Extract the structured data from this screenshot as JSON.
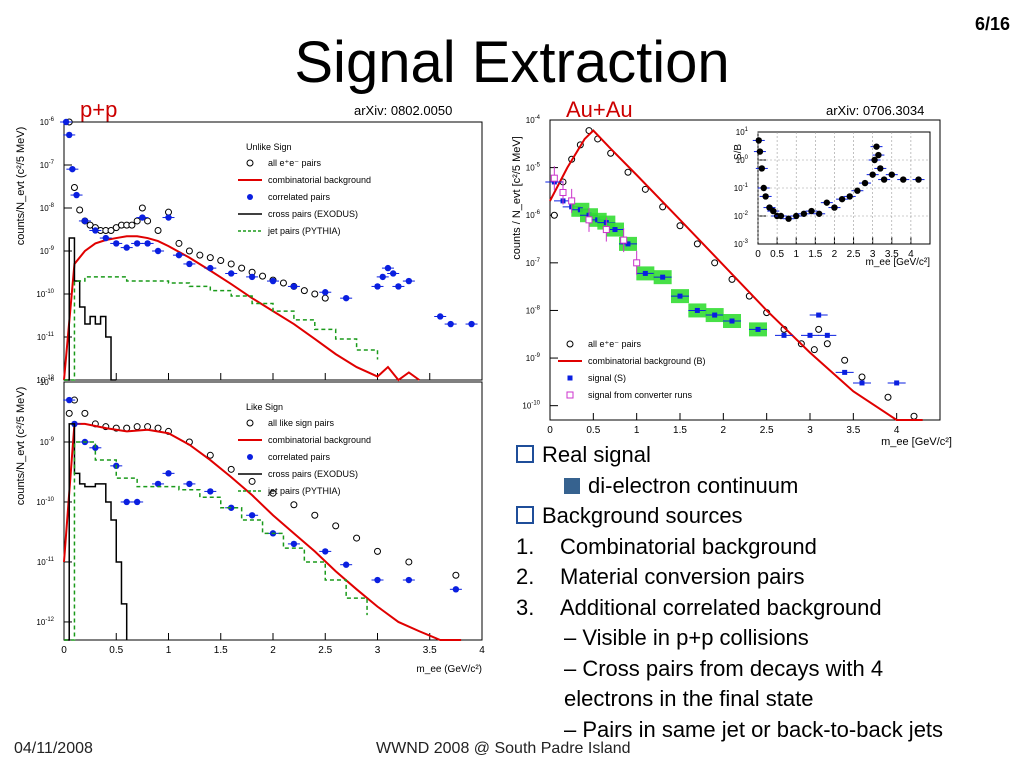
{
  "slide": {
    "title": "Signal Extraction",
    "page": "6/16",
    "footer_date": "04/11/2008",
    "footer_event": "WWND 2008 @ South Padre Island"
  },
  "pp": {
    "label": "p+p",
    "arxiv": "arXiv: 0802.0050",
    "xlabel": "m_ee (GeV/c²)",
    "top_ylabel": "counts/N_evt (c²/5 MeV)",
    "bottom_ylabel": "counts/N_evt (c²/5 MeV)",
    "legend_top_title": "Unlike Sign",
    "legend_top": [
      "all e⁺e⁻ pairs",
      "combinatorial background",
      "correlated pairs",
      "cross pairs (EXODUS)",
      "jet pairs (PYTHIA)"
    ],
    "legend_bottom_title": "Like Sign",
    "legend_bottom": [
      "all like sign pairs",
      "combinatorial background",
      "correlated pairs",
      "cross pairs (EXODUS)",
      "jet pairs (PYTHIA)"
    ]
  },
  "auau": {
    "label": "Au+Au",
    "arxiv": "arXiv: 0706.3034",
    "ylabel": "counts / N_evt [c²/5 MeV]",
    "xlabel": "m_ee [GeV/c²]",
    "legend": [
      "all e⁺e⁻ pairs",
      "combinatorial background (B)",
      "signal (S)",
      "signal from converter runs"
    ],
    "inset_ylabel": "S/B",
    "inset_xlabel": "m_ee [GeV/c²]"
  },
  "bullets": {
    "real_signal": "Real signal",
    "di_electron": "di-electron continuum",
    "background": "Background sources",
    "items": [
      "Combinatorial background",
      "Material conversion pairs",
      "Additional correlated background"
    ],
    "sub1": "– Visible in p+p collisions",
    "sub2a": "– Cross pairs from decays with 4",
    "sub2b": "electrons in the final state",
    "sub3": "– Pairs in same jet or back-to-back jets"
  },
  "colors": {
    "red": "#e00000",
    "blue": "#0a1fe0",
    "green": "#1a9a1a",
    "black": "#000000",
    "magenta": "#cc33cc",
    "greenbox": "#33dd33"
  },
  "chart_data": [
    {
      "id": "pp-unlike",
      "type": "scatter",
      "log_y": true,
      "xlim": [
        0,
        4
      ],
      "ylim": [
        1e-12,
        1e-06
      ],
      "x_ticks": [
        0,
        0.5,
        1,
        1.5,
        2,
        2.5,
        3,
        3.5,
        4
      ],
      "series": [
        {
          "name": "all e⁺e⁻ pairs",
          "style": "open-circle",
          "x": [
            0.05,
            0.1,
            0.15,
            0.2,
            0.25,
            0.3,
            0.35,
            0.4,
            0.45,
            0.5,
            0.55,
            0.6,
            0.65,
            0.7,
            0.75,
            0.8,
            0.9,
            1.0,
            1.1,
            1.2,
            1.3,
            1.4,
            1.5,
            1.6,
            1.7,
            1.8,
            1.9,
            2.0,
            2.1,
            2.2,
            2.3,
            2.4,
            2.5
          ],
          "y": [
            1e-06,
            3e-08,
            9e-09,
            5e-09,
            4e-09,
            3.5e-09,
            3e-09,
            3e-09,
            3e-09,
            3.5e-09,
            4e-09,
            4e-09,
            4e-09,
            5e-09,
            1e-08,
            5e-09,
            3e-09,
            8e-09,
            1.5e-09,
            1e-09,
            8e-10,
            7e-10,
            6e-10,
            5e-10,
            4e-10,
            3.2e-10,
            2.6e-10,
            2.1e-10,
            1.8e-10,
            1.5e-10,
            1.2e-10,
            1e-10,
            8e-11
          ]
        },
        {
          "name": "combinatorial background",
          "style": "line",
          "x": [
            0,
            0.1,
            0.2,
            0.3,
            0.4,
            0.5,
            0.6,
            0.7,
            0.8,
            0.9,
            1.0,
            1.2,
            1.4,
            1.6,
            1.8,
            2.0,
            2.2,
            2.4,
            2.6,
            2.8,
            3.0,
            3.1,
            3.2,
            3.3,
            3.4
          ],
          "y": [
            1e-12,
            5e-10,
            1e-09,
            1.5e-09,
            1.8e-09,
            2e-09,
            2.2e-09,
            2.2e-09,
            2e-09,
            1.7e-09,
            1.3e-09,
            7e-10,
            3.5e-10,
            1.7e-10,
            8e-11,
            4e-11,
            2e-11,
            9e-12,
            4e-12,
            2e-12,
            1.2e-12,
            2e-12,
            1e-12,
            1.5e-12,
            1e-12
          ]
        },
        {
          "name": "correlated pairs",
          "style": "filled-circle",
          "x": [
            0.02,
            0.05,
            0.08,
            0.12,
            0.2,
            0.3,
            0.4,
            0.5,
            0.6,
            0.7,
            0.75,
            0.8,
            0.9,
            1.0,
            1.1,
            1.2,
            1.4,
            1.6,
            1.8,
            2.0,
            2.2,
            2.5,
            2.7,
            3.0,
            3.05,
            3.1,
            3.15,
            3.2,
            3.3,
            3.6,
            3.7,
            3.9
          ],
          "y": [
            1e-06,
            5e-07,
            8e-08,
            2e-08,
            5e-09,
            3e-09,
            2e-09,
            1.5e-09,
            1.2e-09,
            1.5e-09,
            6e-09,
            1.5e-09,
            1e-09,
            6e-09,
            8e-10,
            5e-10,
            4e-10,
            3e-10,
            2.5e-10,
            2e-10,
            1.5e-10,
            1.1e-10,
            8e-11,
            1.5e-10,
            2.5e-10,
            4e-10,
            3e-10,
            1.5e-10,
            2e-10,
            3e-11,
            2e-11,
            2e-11
          ]
        },
        {
          "name": "cross pairs (EXODUS)",
          "style": "step",
          "x": [
            0.0,
            0.05,
            0.1,
            0.15,
            0.2,
            0.25,
            0.3,
            0.35,
            0.4,
            0.45,
            0.5
          ],
          "y": [
            1e-12,
            2e-09,
            2e-10,
            5e-11,
            2e-11,
            3e-11,
            2e-11,
            3e-11,
            1e-11,
            1e-12,
            1e-12
          ]
        },
        {
          "name": "jet pairs (PYTHIA)",
          "style": "dashed-step",
          "x": [
            0.0,
            0.1,
            0.2,
            0.4,
            0.6,
            0.8,
            1.0,
            1.2,
            1.4,
            1.6,
            1.8,
            2.0,
            2.2,
            2.4,
            2.6,
            2.8,
            3.0
          ],
          "y": [
            1e-12,
            2e-10,
            2.5e-10,
            2.5e-10,
            2e-10,
            2e-10,
            1.8e-10,
            1.5e-10,
            1.2e-10,
            9e-11,
            6e-11,
            4e-11,
            2.5e-11,
            1.5e-11,
            9e-12,
            5e-12,
            3e-12
          ]
        }
      ]
    },
    {
      "id": "pp-like",
      "type": "scatter",
      "log_y": true,
      "xlim": [
        0,
        4
      ],
      "ylim": [
        5e-13,
        1e-08
      ],
      "x_ticks": [
        0,
        0.5,
        1,
        1.5,
        2,
        2.5,
        3,
        3.5,
        4
      ],
      "series": [
        {
          "name": "all like sign pairs",
          "style": "open-circle",
          "x": [
            0.05,
            0.1,
            0.2,
            0.3,
            0.4,
            0.5,
            0.6,
            0.7,
            0.8,
            0.9,
            1.0,
            1.2,
            1.4,
            1.6,
            1.8,
            2.0,
            2.2,
            2.4,
            2.6,
            2.8,
            3.0,
            3.3,
            3.75
          ],
          "y": [
            3e-09,
            5e-09,
            3e-09,
            2e-09,
            1.8e-09,
            1.7e-09,
            1.7e-09,
            1.8e-09,
            1.8e-09,
            1.7e-09,
            1.5e-09,
            1e-09,
            6e-10,
            3.5e-10,
            2.2e-10,
            1.4e-10,
            9e-11,
            6e-11,
            4e-11,
            2.5e-11,
            1.5e-11,
            1e-11,
            6e-12
          ]
        },
        {
          "name": "combinatorial background",
          "style": "line",
          "x": [
            0,
            0.1,
            0.2,
            0.4,
            0.6,
            0.8,
            1.0,
            1.2,
            1.4,
            1.6,
            1.8,
            2.0,
            2.2,
            2.4,
            2.6,
            2.8,
            3.0,
            3.2,
            3.4,
            3.6,
            3.8
          ],
          "y": [
            1e-11,
            2e-09,
            2e-09,
            1.7e-09,
            1.5e-09,
            1.6e-09,
            1.4e-09,
            9e-10,
            5e-10,
            2.6e-10,
            1.3e-10,
            6e-11,
            3e-11,
            1.5e-11,
            7e-12,
            3.5e-12,
            1.8e-12,
            1e-12,
            7e-13,
            5e-13,
            5e-13
          ]
        },
        {
          "name": "correlated pairs",
          "style": "filled-circle",
          "x": [
            0.05,
            0.1,
            0.2,
            0.3,
            0.5,
            0.6,
            0.7,
            0.9,
            1.0,
            1.2,
            1.4,
            1.6,
            1.8,
            2.0,
            2.2,
            2.5,
            2.7,
            3.0,
            3.3,
            3.75
          ],
          "y": [
            5e-09,
            2e-09,
            1e-09,
            8e-10,
            4e-10,
            1e-10,
            1e-10,
            2e-10,
            3e-10,
            2e-10,
            1.5e-10,
            8e-11,
            6e-11,
            3e-11,
            2e-11,
            1.5e-11,
            9e-12,
            5e-12,
            5e-12,
            3.5e-12
          ]
        },
        {
          "name": "cross pairs (EXODUS)",
          "style": "step",
          "x": [
            0.0,
            0.05,
            0.1,
            0.15,
            0.2,
            0.3,
            0.4,
            0.45,
            0.5,
            0.55,
            0.6
          ],
          "y": [
            5e-13,
            2e-09,
            3e-10,
            2e-10,
            1.8e-10,
            2e-10,
            1e-10,
            5e-11,
            1e-11,
            2e-12,
            5e-13
          ]
        },
        {
          "name": "jet pairs (PYTHIA)",
          "style": "dashed-step",
          "x": [
            0.0,
            0.1,
            0.3,
            0.5,
            0.7,
            0.9,
            1.1,
            1.3,
            1.5,
            1.7,
            1.9,
            2.1,
            2.3,
            2.5,
            2.7,
            2.9
          ],
          "y": [
            5e-13,
            1e-09,
            5e-10,
            2.5e-10,
            1.8e-10,
            1.8e-10,
            1.6e-10,
            1.2e-10,
            8e-11,
            5e-11,
            3e-11,
            1.7e-11,
            1e-11,
            5e-12,
            2.5e-12,
            1.3e-12
          ]
        }
      ]
    },
    {
      "id": "auau-main",
      "type": "scatter",
      "log_y": true,
      "xlim": [
        0,
        4.5
      ],
      "ylim": [
        5e-11,
        0.0001
      ],
      "x_ticks": [
        0,
        0.5,
        1,
        1.5,
        2,
        2.5,
        3,
        3.5,
        4
      ],
      "series": [
        {
          "name": "all e⁺e⁻ pairs",
          "style": "open-circle",
          "x": [
            0.05,
            0.15,
            0.25,
            0.35,
            0.45,
            0.55,
            0.7,
            0.9,
            1.1,
            1.3,
            1.5,
            1.7,
            1.9,
            2.1,
            2.3,
            2.5,
            2.7,
            2.9,
            3.05,
            3.1,
            3.2,
            3.4,
            3.6,
            3.9,
            4.2
          ],
          "y": [
            1e-06,
            5e-06,
            1.5e-05,
            3e-05,
            6e-05,
            4e-05,
            2e-05,
            8e-06,
            3.5e-06,
            1.5e-06,
            6e-07,
            2.5e-07,
            1e-07,
            4.5e-08,
            2e-08,
            9e-09,
            4e-09,
            2e-09,
            1.5e-09,
            4e-09,
            2e-09,
            9e-10,
            4e-10,
            1.5e-10,
            6e-11
          ]
        },
        {
          "name": "combinatorial background (B)",
          "style": "line",
          "x": [
            0.0,
            0.2,
            0.4,
            0.5,
            0.7,
            1.0,
            1.5,
            2.0,
            2.5,
            3.0,
            3.5,
            4.0,
            4.3
          ],
          "y": [
            2e-06,
            1e-05,
            4e-05,
            6e-05,
            2.5e-05,
            7e-06,
            8e-07,
            9e-08,
            1e-08,
            1.3e-09,
            2e-10,
            5e-11,
            3e-11
          ]
        },
        {
          "name": "signal (S)",
          "style": "filled-square",
          "x": [
            0.05,
            0.15,
            0.25,
            0.35,
            0.45,
            0.55,
            0.65,
            0.75,
            0.9,
            1.1,
            1.3,
            1.5,
            1.7,
            1.9,
            2.1,
            2.4,
            2.7,
            3.0,
            3.1,
            3.2,
            3.4,
            3.6,
            4.0
          ],
          "y": [
            5e-06,
            2e-06,
            1.5e-06,
            1.3e-06,
            1e-06,
            8e-07,
            7e-07,
            5e-07,
            2.5e-07,
            6e-08,
            5e-08,
            2e-08,
            1e-08,
            8e-09,
            6e-09,
            4e-09,
            3e-09,
            3e-09,
            8e-09,
            3e-09,
            5e-10,
            3e-10,
            3e-10
          ]
        },
        {
          "name": "signal from converter runs",
          "style": "open-square-magenta",
          "x": [
            0.05,
            0.15,
            0.25,
            0.45,
            0.65,
            0.85,
            1.0
          ],
          "y": [
            6e-06,
            3e-06,
            2e-06,
            8e-07,
            5e-07,
            3e-07,
            1e-07
          ]
        }
      ]
    },
    {
      "id": "auau-inset",
      "type": "scatter",
      "log_y": true,
      "xlim": [
        0,
        4.5
      ],
      "ylim": [
        0.001,
        10
      ],
      "x_ticks": [
        0,
        0.5,
        1,
        1.5,
        2,
        2.5,
        3,
        3.5,
        4
      ],
      "series": [
        {
          "name": "S/B",
          "style": "filled-circle",
          "x": [
            0.02,
            0.05,
            0.1,
            0.15,
            0.2,
            0.3,
            0.4,
            0.5,
            0.6,
            0.8,
            1.0,
            1.2,
            1.4,
            1.6,
            1.8,
            2.0,
            2.2,
            2.4,
            2.6,
            2.8,
            3.0,
            3.05,
            3.1,
            3.15,
            3.2,
            3.3,
            3.5,
            3.8,
            4.2
          ],
          "y": [
            5,
            2,
            0.5,
            0.1,
            0.05,
            0.02,
            0.015,
            0.01,
            0.01,
            0.008,
            0.01,
            0.012,
            0.015,
            0.012,
            0.03,
            0.02,
            0.04,
            0.05,
            0.08,
            0.15,
            0.3,
            1,
            3,
            1.5,
            0.5,
            0.2,
            0.3,
            0.2,
            0.2
          ]
        }
      ]
    }
  ]
}
